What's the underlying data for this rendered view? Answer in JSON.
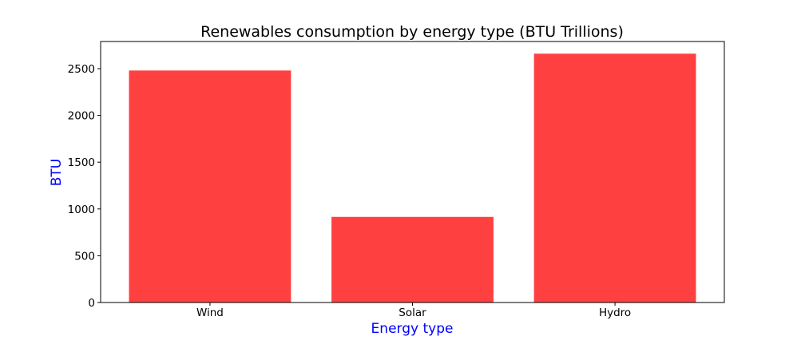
{
  "chart_data": {
    "type": "bar",
    "title": "Renewables consumption by energy type (BTU Trillions)",
    "xlabel": "Energy type",
    "ylabel": "BTU",
    "categories": [
      "Wind",
      "Solar",
      "Hydro"
    ],
    "values": [
      2480,
      915,
      2660
    ],
    "ylim": [
      0,
      2790
    ],
    "yticks": [
      0,
      500,
      1000,
      1500,
      2000,
      2500
    ],
    "grid": false,
    "legend": "none",
    "colors": {
      "bar": "#ff4040",
      "axis_label": "#0000ff",
      "text": "#000000"
    }
  }
}
